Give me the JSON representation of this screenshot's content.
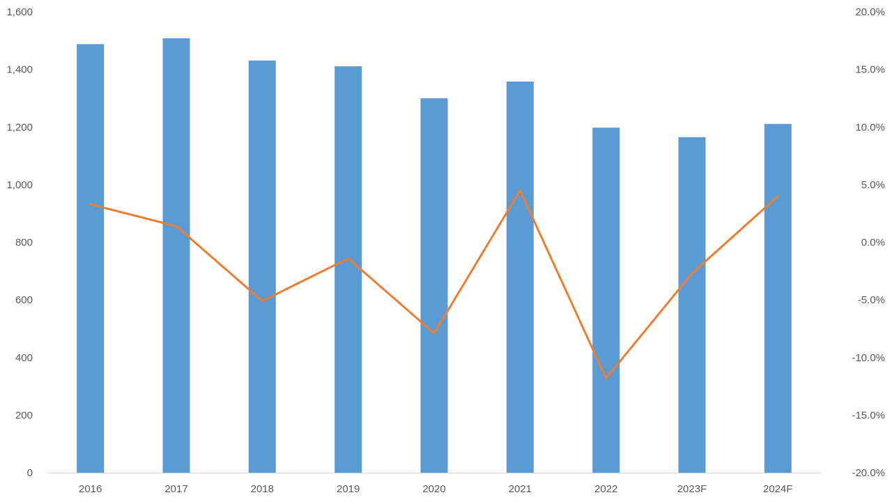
{
  "chart_data": {
    "type": "bar",
    "categories": [
      "2016",
      "2017",
      "2018",
      "2019",
      "2020",
      "2021",
      "2022",
      "2023F",
      "2024F"
    ],
    "series": [
      {
        "type": "bar",
        "axis": "left",
        "color": "#5B9BD5",
        "values": [
          1488,
          1508,
          1431,
          1411,
          1300,
          1358,
          1198,
          1165,
          1211
        ]
      },
      {
        "type": "line",
        "axis": "right",
        "color": "#ED7D31",
        "values": [
          3.3,
          1.4,
          -5.1,
          -1.4,
          -7.9,
          4.5,
          -11.8,
          -2.7,
          4.0
        ]
      }
    ],
    "y_left": {
      "min": 0,
      "max": 1600,
      "ticks": [
        0,
        200,
        400,
        600,
        800,
        1000,
        1200,
        1400,
        1600
      ],
      "tick_labels": [
        "0",
        "200",
        "400",
        "600",
        "800",
        "1,000",
        "1,200",
        "1,400",
        "1,600"
      ]
    },
    "y_right": {
      "min": -20,
      "max": 20,
      "ticks": [
        -20,
        -15,
        -10,
        -5,
        0,
        5,
        10,
        15,
        20
      ],
      "tick_labels": [
        "-20.0%",
        "-15.0%",
        "-10.0%",
        "-5.0%",
        "0.0%",
        "5.0%",
        "10.0%",
        "15.0%",
        "20.0%"
      ]
    },
    "title": "",
    "xlabel": "",
    "ylabel": "",
    "grid": false,
    "legend": "none",
    "colors": {
      "axis_line": "#D9D9D9",
      "tick_text": "#595959"
    }
  }
}
